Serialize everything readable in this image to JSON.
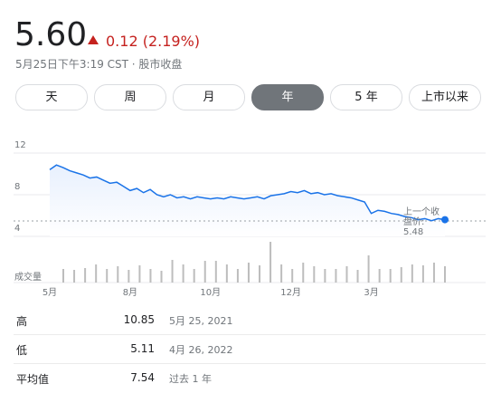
{
  "header": {
    "price": "5.60",
    "change": "0.12 (2.19%)",
    "subtitle": "5月25日下午3:19 CST · 股市收盘"
  },
  "tabs": {
    "items": [
      "天",
      "周",
      "月",
      "年",
      "5 年",
      "上市以来"
    ],
    "selected": 3
  },
  "chart_data": {
    "type": "line",
    "color": "#1a73e8",
    "values": [
      10.4,
      10.85,
      10.6,
      10.3,
      10.1,
      9.9,
      9.6,
      9.7,
      9.4,
      9.1,
      9.2,
      8.8,
      8.4,
      8.6,
      8.2,
      8.5,
      8.0,
      7.8,
      8.0,
      7.7,
      7.8,
      7.6,
      7.8,
      7.7,
      7.6,
      7.7,
      7.6,
      7.8,
      7.7,
      7.6,
      7.7,
      7.8,
      7.6,
      7.9,
      8.0,
      8.1,
      8.3,
      8.2,
      8.4,
      8.1,
      8.2,
      8.0,
      8.1,
      7.9,
      7.8,
      7.7,
      7.5,
      7.3,
      6.2,
      6.5,
      6.4,
      6.2,
      6.1,
      5.9,
      5.8,
      5.6,
      5.7,
      5.5,
      5.7,
      5.6
    ],
    "xlim": [
      -5.4,
      65
    ],
    "xticks": [
      {
        "value": 0,
        "label": "5月"
      },
      {
        "value": 12,
        "label": "8月"
      },
      {
        "value": 24,
        "label": "10月"
      },
      {
        "value": 36,
        "label": "12月"
      },
      {
        "value": 48,
        "label": "3月"
      }
    ],
    "ylim": [
      4,
      12
    ],
    "yticks": [
      12,
      8,
      4
    ],
    "grid": true,
    "prev_close": {
      "label": "上一个收盘价:",
      "value": 5.48
    },
    "volume": {
      "name": "成交量",
      "color": "#bdbdbd",
      "vlim": [
        0,
        100
      ],
      "values": [
        30,
        28,
        32,
        40,
        30,
        36,
        28,
        38,
        30,
        26,
        50,
        40,
        30,
        48,
        48,
        40,
        30,
        44,
        38,
        90,
        40,
        30,
        44,
        36,
        30,
        30,
        36,
        28,
        60,
        30,
        30,
        34,
        40,
        38,
        44,
        36
      ]
    }
  },
  "table": {
    "rows": [
      [
        "高",
        "10.85",
        "5月 25, 2021"
      ],
      [
        "低",
        "5.11",
        "4月 26, 2022"
      ],
      [
        "平均值",
        "7.54",
        "过去 1 年"
      ]
    ]
  }
}
